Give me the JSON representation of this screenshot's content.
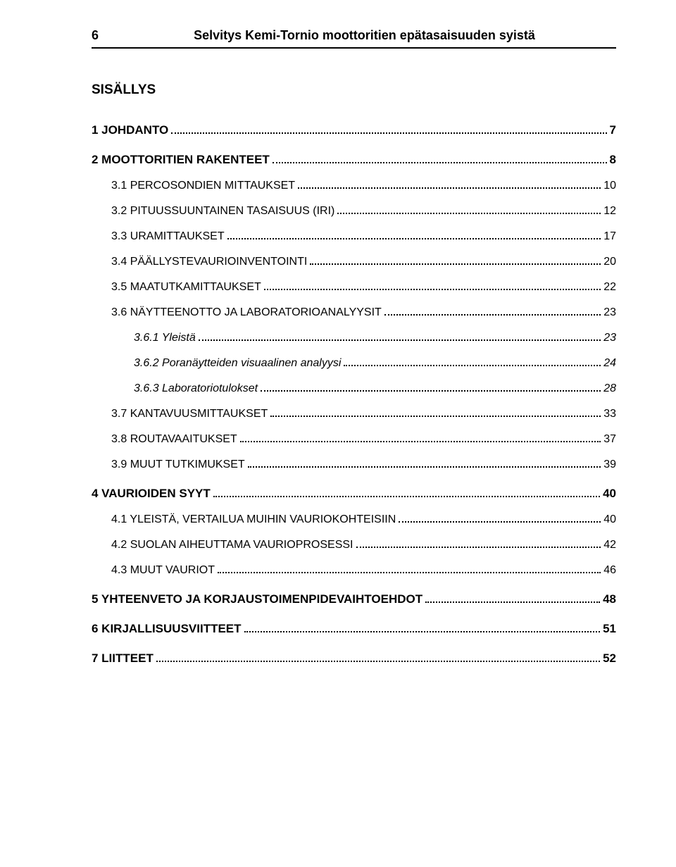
{
  "header": {
    "page_number": "6",
    "title": "Selvitys Kemi-Tornio moottoritien epätasaisuuden syistä"
  },
  "sisallys_label": "SISÄLLYS",
  "toc": [
    {
      "level": 1,
      "label": "1 JOHDANTO",
      "page": "7"
    },
    {
      "level": 1,
      "label": "2 MOOTTORITIEN RAKENTEET",
      "page": "8"
    },
    {
      "level": 2,
      "label": "3.1 PERCOSONDIEN MITTAUKSET",
      "page": "10",
      "smallcaps": true
    },
    {
      "level": 2,
      "label": "3.2 PITUUSSUUNTAINEN TASAISUUS (IRI)",
      "page": "12",
      "smallcaps": true
    },
    {
      "level": 2,
      "label": "3.3 URAMITTAUKSET",
      "page": "17",
      "smallcaps": true
    },
    {
      "level": 2,
      "label": "3.4 PÄÄLLYSTEVAURIOINVENTOINTI",
      "page": "20",
      "smallcaps": true
    },
    {
      "level": 2,
      "label": "3.5 MAATUTKAMITTAUKSET",
      "page": "22",
      "smallcaps": true
    },
    {
      "level": 2,
      "label": "3.6 NÄYTTEENOTTO JA LABORATORIOANALYYSIT",
      "page": "23",
      "smallcaps": true
    },
    {
      "level": 3,
      "label": "3.6.1 Yleistä",
      "page": "23"
    },
    {
      "level": 3,
      "label": "3.6.2 Poranäytteiden visuaalinen analyysi",
      "page": "24"
    },
    {
      "level": 3,
      "label": "3.6.3 Laboratoriotulokset",
      "page": "28"
    },
    {
      "level": 2,
      "label": "3.7 KANTAVUUSMITTAUKSET",
      "page": "33",
      "smallcaps": true
    },
    {
      "level": 2,
      "label": "3.8 ROUTAVAAITUKSET",
      "page": "37",
      "smallcaps": true
    },
    {
      "level": 2,
      "label": "3.9 MUUT TUTKIMUKSET",
      "page": "39",
      "smallcaps": true
    },
    {
      "level": 1,
      "label": "4 VAURIOIDEN SYYT",
      "page": "40"
    },
    {
      "level": 2,
      "label": "4.1 YLEISTÄ, VERTAILUA MUIHIN VAURIOKOHTEISIIN",
      "page": "40",
      "smallcaps": true
    },
    {
      "level": 2,
      "label": "4.2 SUOLAN AIHEUTTAMA VAURIOPROSESSI",
      "page": "42",
      "smallcaps": true
    },
    {
      "level": 2,
      "label": "4.3 MUUT VAURIOT",
      "page": "46",
      "smallcaps": true
    },
    {
      "level": 1,
      "label": "5 YHTEENVETO JA KORJAUSTOIMENPIDEVAIHTOEHDOT",
      "page": "48"
    },
    {
      "level": 1,
      "label": "6 KIRJALLISUUSVIITTEET",
      "page": "51"
    },
    {
      "level": 1,
      "label": "7 LIITTEET",
      "page": "52"
    }
  ]
}
